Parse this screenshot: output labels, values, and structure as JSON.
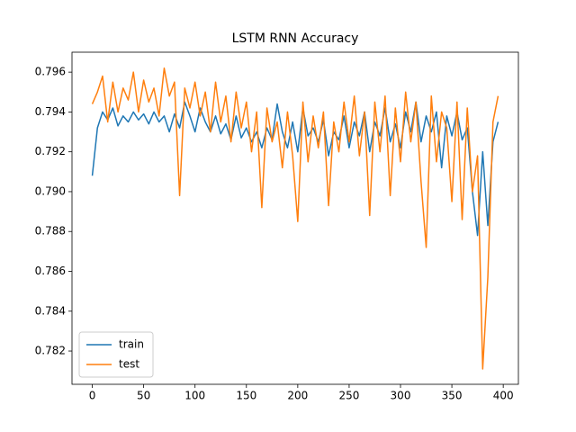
{
  "chart_data": {
    "type": "line",
    "title": "LSTM RNN Accuracy",
    "x": [
      0,
      5,
      10,
      15,
      20,
      25,
      30,
      35,
      40,
      45,
      50,
      55,
      60,
      65,
      70,
      75,
      80,
      85,
      90,
      95,
      100,
      105,
      110,
      115,
      120,
      125,
      130,
      135,
      140,
      145,
      150,
      155,
      160,
      165,
      170,
      175,
      180,
      185,
      190,
      195,
      200,
      205,
      210,
      215,
      220,
      225,
      230,
      235,
      240,
      245,
      250,
      255,
      260,
      265,
      270,
      275,
      280,
      285,
      290,
      295,
      300,
      305,
      310,
      315,
      320,
      325,
      330,
      335,
      340,
      345,
      350,
      355,
      360,
      365,
      370,
      375,
      380,
      385,
      390,
      395
    ],
    "series": [
      {
        "name": "train",
        "color": "#1f77b4",
        "values": [
          0.7908,
          0.7932,
          0.794,
          0.7936,
          0.7942,
          0.7933,
          0.7938,
          0.7935,
          0.794,
          0.7936,
          0.7939,
          0.7934,
          0.794,
          0.7935,
          0.7938,
          0.793,
          0.7939,
          0.7932,
          0.7945,
          0.7938,
          0.793,
          0.7942,
          0.7935,
          0.793,
          0.7938,
          0.7929,
          0.7934,
          0.7926,
          0.7938,
          0.7927,
          0.7932,
          0.7925,
          0.793,
          0.7922,
          0.7932,
          0.7926,
          0.7944,
          0.793,
          0.7922,
          0.7935,
          0.792,
          0.7942,
          0.7928,
          0.7932,
          0.7925,
          0.7936,
          0.7918,
          0.793,
          0.7926,
          0.7938,
          0.7922,
          0.7935,
          0.7928,
          0.794,
          0.792,
          0.7935,
          0.7928,
          0.7942,
          0.7925,
          0.7934,
          0.7922,
          0.794,
          0.793,
          0.7945,
          0.7925,
          0.7938,
          0.793,
          0.794,
          0.7912,
          0.7938,
          0.7928,
          0.794,
          0.7926,
          0.7932,
          0.79,
          0.7878,
          0.792,
          0.7883,
          0.7925,
          0.7935
        ]
      },
      {
        "name": "test",
        "color": "#ff7f0e",
        "values": [
          0.7944,
          0.795,
          0.7958,
          0.7935,
          0.7955,
          0.794,
          0.7952,
          0.7946,
          0.796,
          0.794,
          0.7956,
          0.7945,
          0.7952,
          0.7938,
          0.7962,
          0.7948,
          0.7955,
          0.7898,
          0.7952,
          0.7942,
          0.7955,
          0.7938,
          0.795,
          0.793,
          0.7955,
          0.7935,
          0.7948,
          0.7925,
          0.795,
          0.7932,
          0.7945,
          0.792,
          0.794,
          0.7892,
          0.7942,
          0.7925,
          0.7935,
          0.7912,
          0.794,
          0.7918,
          0.7885,
          0.7945,
          0.7915,
          0.7938,
          0.7922,
          0.794,
          0.7893,
          0.7935,
          0.792,
          0.7945,
          0.7925,
          0.7948,
          0.7918,
          0.794,
          0.7888,
          0.7945,
          0.792,
          0.7948,
          0.7898,
          0.7942,
          0.7915,
          0.795,
          0.7925,
          0.7945,
          0.7905,
          0.7872,
          0.7948,
          0.7915,
          0.794,
          0.7932,
          0.7895,
          0.7945,
          0.7886,
          0.7942,
          0.79,
          0.7918,
          0.7811,
          0.7857,
          0.7935,
          0.7948
        ]
      }
    ],
    "xlim": [
      -19.75,
      414.75
    ],
    "xticks": [
      0,
      50,
      100,
      150,
      200,
      250,
      300,
      350,
      400
    ],
    "ylim": [
      0.78033,
      0.797
    ],
    "yticks": [
      0.782,
      0.784,
      0.786,
      0.788,
      {
        "value": 0.79,
        "label": "0.790"
      },
      0.792,
      0.794,
      0.796
    ],
    "legend": "lower left"
  }
}
